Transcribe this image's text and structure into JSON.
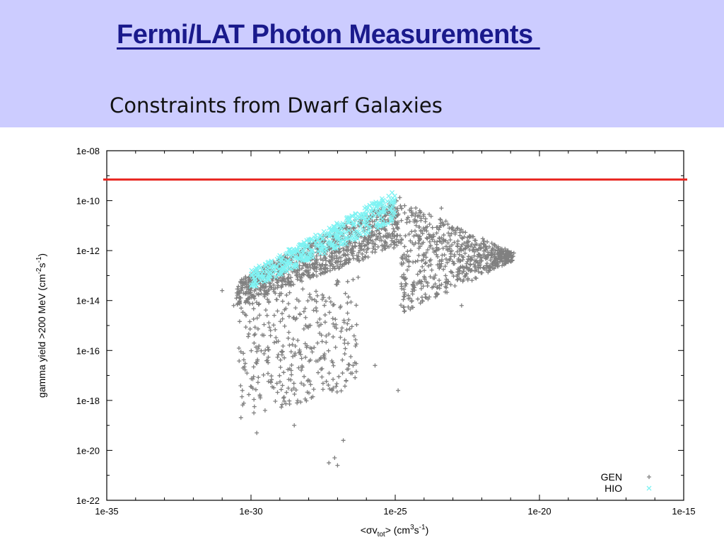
{
  "slide": {
    "title": "Fermi/LAT Photon Measurements ",
    "subtitle": "Constraints from Dwarf Galaxies"
  },
  "colors": {
    "header_bg": "#ccccff",
    "title": "#1a1a8c",
    "limit_line": "#e8231d",
    "gen_points": "#808080",
    "hio_points": "#7ff3f3"
  },
  "chart_data": {
    "type": "scatter",
    "scale": "log-log",
    "xlabel": "<σv_tot>  (cm³s⁻¹)",
    "ylabel": "gamma yield >200 MeV (cm⁻²s⁻¹)",
    "xlim": [
      1e-35,
      1e-15
    ],
    "ylim": [
      1e-22,
      1e-08
    ],
    "x_ticks": [
      "1e-35",
      "1e-30",
      "1e-25",
      "1e-20",
      "1e-15"
    ],
    "y_ticks": [
      "1e-08",
      "1e-10",
      "1e-12",
      "1e-14",
      "1e-16",
      "1e-18",
      "1e-20",
      "1e-22"
    ],
    "grid": false,
    "legend_position": "bottom-right",
    "reference_line": {
      "y": 7e-10,
      "color": "#e8231d"
    },
    "series": [
      {
        "name": "GEN",
        "marker": "+",
        "color": "#808080",
        "regions": [
          {
            "log_x": [
              -30.5,
              -24.8
            ],
            "log_y_low": [
              -14.2,
              -11.8
            ],
            "log_y_high": [
              -13.2,
              -9.8
            ]
          },
          {
            "log_x": [
              -24.8,
              -20.9
            ],
            "log_y_low": [
              -14.5,
              -12.4
            ],
            "log_y_high": [
              -10.0,
              -12.1
            ]
          },
          {
            "log_x": [
              -30.4,
              -26.3
            ],
            "log_y_low": [
              -18.8,
              -17.5
            ],
            "log_y_high": [
              -14.0,
              -13.0
            ]
          }
        ],
        "sample_points": [
          [
            -27.3,
            -20.5
          ],
          [
            -27.1,
            -20.3
          ],
          [
            -27.0,
            -20.6
          ],
          [
            -26.8,
            -19.6
          ],
          [
            -28.5,
            -19.0
          ],
          [
            -29.8,
            -19.3
          ],
          [
            -29.9,
            -18.5
          ],
          [
            -30.3,
            -17.6
          ],
          [
            -24.9,
            -17.6
          ],
          [
            -21.1,
            -12.0
          ],
          [
            -23.4,
            -10.3
          ],
          [
            -22.7,
            -14.2
          ],
          [
            -25.7,
            -16.6
          ],
          [
            -30.6,
            -14.2
          ],
          [
            -31.0,
            -13.6
          ]
        ]
      },
      {
        "name": "HIO",
        "marker": "x",
        "color": "#7ff3f3",
        "regions": [
          {
            "log_x": [
              -30.0,
              -25.0
            ],
            "log_y_low": [
              -13.5,
              -10.8
            ],
            "log_y_high": [
              -12.8,
              -9.6
            ]
          }
        ]
      }
    ]
  }
}
